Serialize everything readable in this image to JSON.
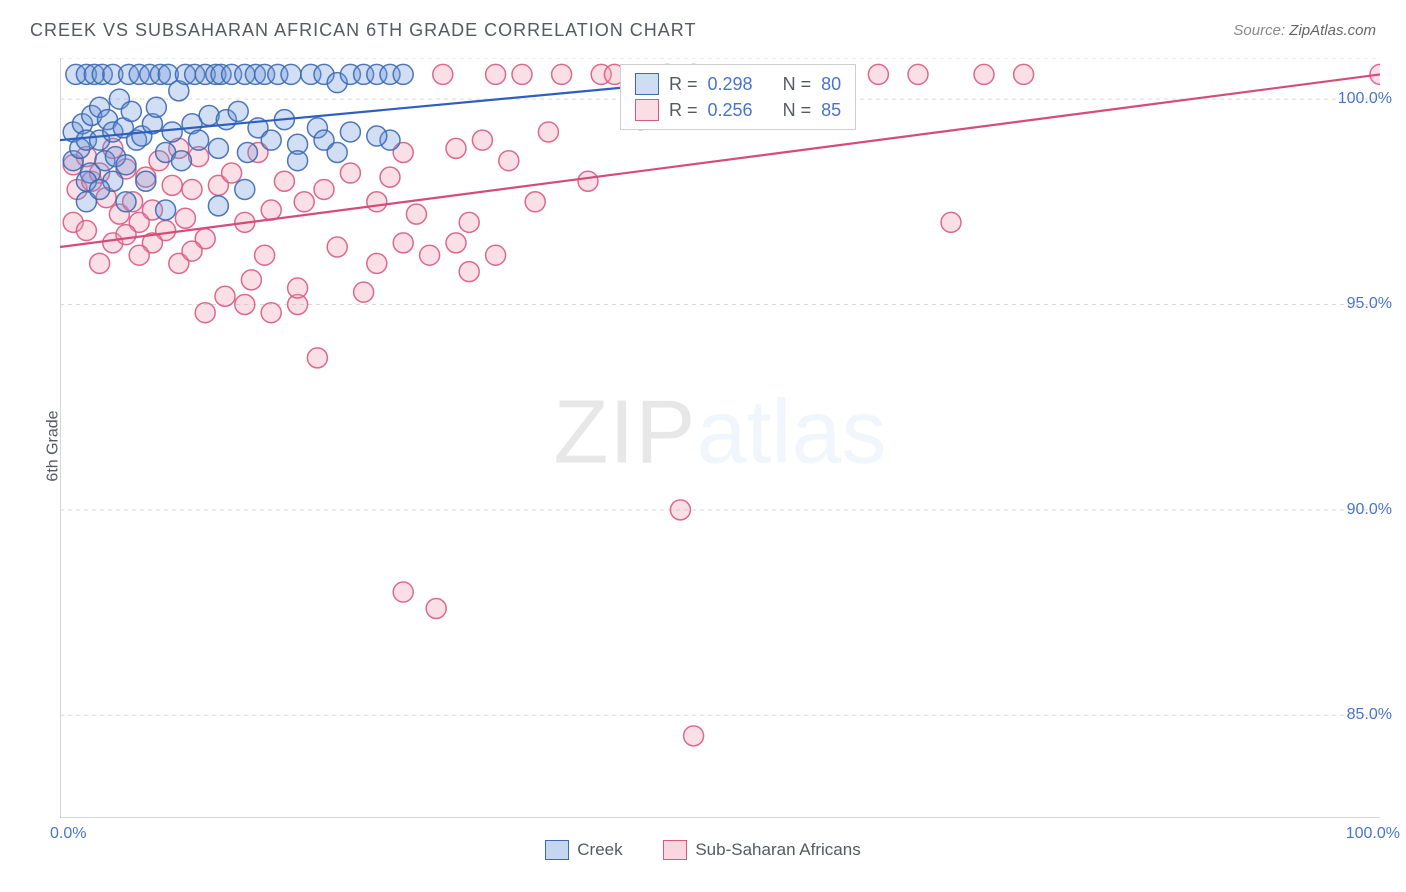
{
  "title": "CREEK VS SUBSAHARAN AFRICAN 6TH GRADE CORRELATION CHART",
  "source_label": "Source: ",
  "source_value": "ZipAtlas.com",
  "ylabel": "6th Grade",
  "watermark": {
    "zip": "ZIP",
    "atlas": "atlas"
  },
  "chart": {
    "type": "scatter",
    "xlim": [
      0,
      100
    ],
    "ylim": [
      82.5,
      101
    ],
    "background_color": "#ffffff",
    "grid_color": "#d9d9d9",
    "axis_color": "#c7c7c7",
    "ytick_labels": [
      "100.0%",
      "95.0%",
      "90.0%",
      "85.0%"
    ],
    "ytick_values": [
      100,
      95,
      90,
      85
    ],
    "xtick_positions": [
      0,
      10,
      20,
      30,
      40,
      50,
      60,
      70,
      80,
      90,
      100
    ],
    "x_axis_labels": {
      "left": "0.0%",
      "right": "100.0%"
    },
    "marker_radius": 10,
    "marker_fill_opacity": 0.32,
    "marker_stroke_opacity": 0.9,
    "marker_stroke_width": 1.5,
    "line_width": 2.2,
    "series": [
      {
        "name": "Creek",
        "legend_label": "Creek",
        "color_fill": "#6f98da",
        "color_stroke": "#3b69b3",
        "line_color": "#2e5fbf",
        "R": "0.298",
        "N": "80",
        "trend": {
          "x1": 0,
          "y1": 99.0,
          "x2": 60,
          "y2": 100.8
        },
        "points": [
          [
            1,
            99.2
          ],
          [
            1,
            98.5
          ],
          [
            1.2,
            100.6
          ],
          [
            1.5,
            98.8
          ],
          [
            1.7,
            99.4
          ],
          [
            2,
            100.6
          ],
          [
            2,
            99.0
          ],
          [
            2.3,
            98.2
          ],
          [
            2.4,
            99.6
          ],
          [
            2.6,
            100.6
          ],
          [
            3,
            99.8
          ],
          [
            3,
            99.0
          ],
          [
            3.2,
            100.6
          ],
          [
            3.4,
            98.5
          ],
          [
            3.6,
            99.5
          ],
          [
            4,
            100.6
          ],
          [
            4,
            99.2
          ],
          [
            4.2,
            98.6
          ],
          [
            4.5,
            100.0
          ],
          [
            4.8,
            99.3
          ],
          [
            5,
            98.4
          ],
          [
            5.2,
            100.6
          ],
          [
            5.4,
            99.7
          ],
          [
            5.8,
            99.0
          ],
          [
            6,
            100.6
          ],
          [
            6.2,
            99.1
          ],
          [
            6.5,
            98.0
          ],
          [
            6.8,
            100.6
          ],
          [
            7,
            99.4
          ],
          [
            7.3,
            99.8
          ],
          [
            7.6,
            100.6
          ],
          [
            8,
            98.7
          ],
          [
            8.2,
            100.6
          ],
          [
            8.5,
            99.2
          ],
          [
            9,
            100.2
          ],
          [
            9.2,
            98.5
          ],
          [
            9.5,
            100.6
          ],
          [
            10,
            99.4
          ],
          [
            10.2,
            100.6
          ],
          [
            10.5,
            99.0
          ],
          [
            11,
            100.6
          ],
          [
            11.3,
            99.6
          ],
          [
            11.8,
            100.6
          ],
          [
            12,
            98.8
          ],
          [
            12.2,
            100.6
          ],
          [
            12.6,
            99.5
          ],
          [
            13,
            100.6
          ],
          [
            13.5,
            99.7
          ],
          [
            14,
            100.6
          ],
          [
            14.2,
            98.7
          ],
          [
            14.8,
            100.6
          ],
          [
            15,
            99.3
          ],
          [
            15.5,
            100.6
          ],
          [
            16,
            99.0
          ],
          [
            16.5,
            100.6
          ],
          [
            17,
            99.5
          ],
          [
            17.5,
            100.6
          ],
          [
            18,
            98.9
          ],
          [
            19,
            100.6
          ],
          [
            19.5,
            99.3
          ],
          [
            20,
            100.6
          ],
          [
            20,
            99.0
          ],
          [
            21,
            100.4
          ],
          [
            22,
            100.6
          ],
          [
            22,
            99.2
          ],
          [
            23,
            100.6
          ],
          [
            24,
            100.6
          ],
          [
            25,
            100.6
          ],
          [
            25,
            99.0
          ],
          [
            26,
            100.6
          ],
          [
            8,
            97.3
          ],
          [
            4,
            98.0
          ],
          [
            2,
            98.0
          ],
          [
            12,
            97.4
          ],
          [
            18,
            98.5
          ],
          [
            21,
            98.7
          ],
          [
            24,
            99.1
          ],
          [
            14,
            97.8
          ],
          [
            2,
            97.5
          ],
          [
            3,
            97.8
          ],
          [
            5,
            97.5
          ]
        ]
      },
      {
        "name": "Sub-Saharan Africans",
        "legend_label": "Sub-Saharan Africans",
        "color_fill": "#f39bb2",
        "color_stroke": "#d85a84",
        "line_color": "#d54b7a",
        "R": "0.256",
        "N": "85",
        "trend": {
          "x1": 0,
          "y1": 96.4,
          "x2": 100,
          "y2": 100.6
        },
        "points": [
          [
            1,
            98.4
          ],
          [
            1.3,
            97.8
          ],
          [
            2,
            98.6
          ],
          [
            2.4,
            98.0
          ],
          [
            3,
            98.2
          ],
          [
            3.5,
            97.6
          ],
          [
            4,
            98.8
          ],
          [
            4.5,
            97.2
          ],
          [
            5,
            98.3
          ],
          [
            5.5,
            97.5
          ],
          [
            6,
            97.0
          ],
          [
            6.5,
            98.1
          ],
          [
            7,
            97.3
          ],
          [
            7.5,
            98.5
          ],
          [
            8,
            96.8
          ],
          [
            8.5,
            97.9
          ],
          [
            9,
            98.8
          ],
          [
            9.5,
            97.1
          ],
          [
            10,
            97.8
          ],
          [
            10.5,
            98.6
          ],
          [
            11,
            96.6
          ],
          [
            12,
            97.9
          ],
          [
            12.5,
            95.2
          ],
          [
            13,
            98.2
          ],
          [
            14,
            97.0
          ],
          [
            14.5,
            95.6
          ],
          [
            15,
            98.7
          ],
          [
            15.5,
            96.2
          ],
          [
            16,
            97.3
          ],
          [
            17,
            98.0
          ],
          [
            18,
            95.0
          ],
          [
            18.5,
            97.5
          ],
          [
            19.5,
            93.7
          ],
          [
            20,
            97.8
          ],
          [
            21,
            96.4
          ],
          [
            22,
            98.2
          ],
          [
            23,
            95.3
          ],
          [
            24,
            97.5
          ],
          [
            25,
            98.1
          ],
          [
            26,
            96.5
          ],
          [
            26,
            88.0
          ],
          [
            28,
            96.2
          ],
          [
            28.5,
            87.6
          ],
          [
            29,
            100.6
          ],
          [
            30,
            98.8
          ],
          [
            31,
            97.0
          ],
          [
            32,
            99.0
          ],
          [
            33,
            100.6
          ],
          [
            34,
            98.5
          ],
          [
            35,
            100.6
          ],
          [
            37,
            99.2
          ],
          [
            38,
            100.6
          ],
          [
            40,
            98.0
          ],
          [
            41,
            100.6
          ],
          [
            42,
            100.6
          ],
          [
            44,
            99.5
          ],
          [
            46,
            100.6
          ],
          [
            47,
            90.0
          ],
          [
            48,
            100.6
          ],
          [
            48,
            84.5
          ],
          [
            62,
            100.6
          ],
          [
            65,
            100.6
          ],
          [
            67.5,
            97.0
          ],
          [
            70,
            100.6
          ],
          [
            73,
            100.6
          ],
          [
            100,
            100.6
          ],
          [
            14,
            95.0
          ],
          [
            16,
            94.8
          ],
          [
            18,
            95.4
          ],
          [
            11,
            94.8
          ],
          [
            7,
            96.5
          ],
          [
            9,
            96.0
          ],
          [
            1,
            97.0
          ],
          [
            2,
            96.8
          ],
          [
            4,
            96.5
          ],
          [
            6,
            96.2
          ],
          [
            3,
            96.0
          ],
          [
            10,
            96.3
          ],
          [
            5,
            96.7
          ],
          [
            33,
            96.2
          ],
          [
            30,
            96.5
          ],
          [
            24,
            96.0
          ],
          [
            31,
            95.8
          ],
          [
            27,
            97.2
          ],
          [
            36,
            97.5
          ],
          [
            26,
            98.7
          ]
        ]
      }
    ]
  },
  "legend_box": {
    "R_label": "R =",
    "N_label": "N ="
  },
  "bottom_legend_labels": [
    "Creek",
    "Sub-Saharan Africans"
  ]
}
